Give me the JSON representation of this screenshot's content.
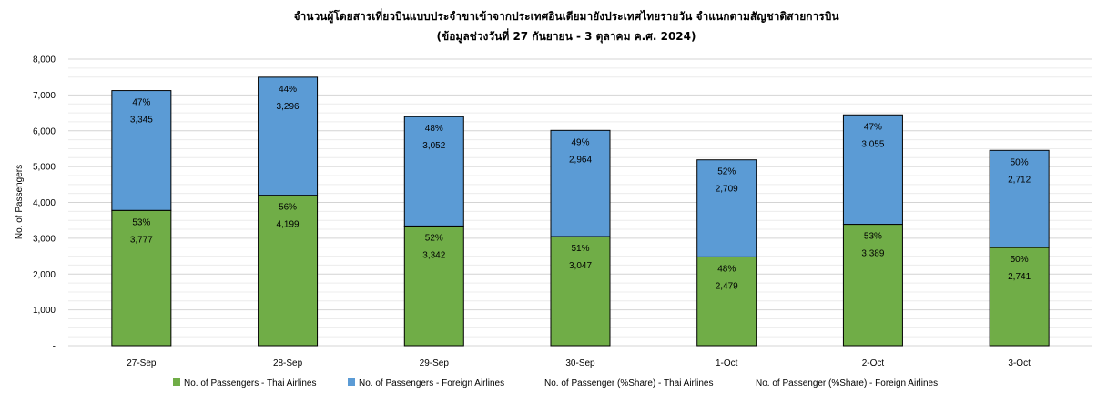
{
  "chart_data": {
    "type": "bar",
    "stacked": true,
    "title": "จำนวนผู้โดยสารเที่ยวบินแบบประจำขาเข้าจากประเทศอินเดียมายังประเทศไทยรายวัน  จำแนกตามสัญชาติสายการบิน",
    "subtitle": "(ข้อมูลช่วงวันที่ 27 กันยายน - 3 ตุลาคม ค.ศ. 2024)",
    "xlabel": "",
    "ylabel": "No. of Passengers",
    "ylim": [
      0,
      8000
    ],
    "yticks": [
      0,
      1000,
      2000,
      3000,
      4000,
      5000,
      6000,
      7000,
      8000
    ],
    "ytick_labels": [
      "-",
      "1,000",
      "2,000",
      "3,000",
      "4,000",
      "5,000",
      "6,000",
      "7,000",
      "8,000"
    ],
    "grid": true,
    "legend_position": "bottom",
    "categories": [
      "27-Sep",
      "28-Sep",
      "29-Sep",
      "30-Sep",
      "1-Oct",
      "2-Oct",
      "3-Oct"
    ],
    "series": [
      {
        "name": "No. of Passengers - Thai Airlines",
        "color": "#70ad47",
        "values": [
          3777,
          4199,
          3342,
          3047,
          2479,
          3389,
          2741
        ],
        "value_labels": [
          "3,777",
          "4,199",
          "3,342",
          "3,047",
          "2,479",
          "3,389",
          "2,741"
        ]
      },
      {
        "name": "No. of Passengers - Foreign Airlines",
        "color": "#5b9bd5",
        "values": [
          3345,
          3296,
          3052,
          2964,
          2709,
          3055,
          2712
        ],
        "value_labels": [
          "3,345",
          "3,296",
          "3,052",
          "2,964",
          "2,709",
          "3,055",
          "2,712"
        ]
      },
      {
        "name": "No. of Passenger (%Share) - Thai Airlines",
        "values": [
          53,
          56,
          52,
          51,
          48,
          53,
          50
        ],
        "value_labels": [
          "53%",
          "56%",
          "52%",
          "51%",
          "48%",
          "53%",
          "50%"
        ]
      },
      {
        "name": "No. of Passenger (%Share) - Foreign Airlines",
        "values": [
          47,
          44,
          48,
          49,
          52,
          47,
          50
        ],
        "value_labels": [
          "47%",
          "44%",
          "48%",
          "49%",
          "52%",
          "47%",
          "50%"
        ]
      }
    ]
  }
}
